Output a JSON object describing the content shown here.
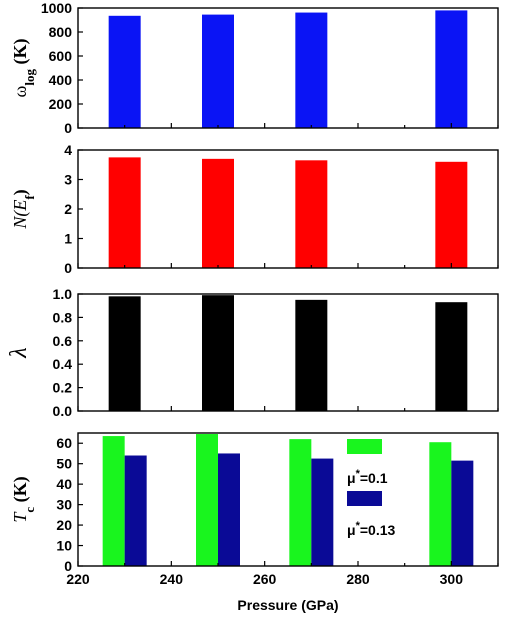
{
  "chart_data": [
    {
      "type": "bar",
      "panel": "omega_log",
      "ylabel": {
        "main": "ω",
        "sub": "log",
        "tail": " (K)"
      },
      "color": "#0a14f5",
      "x": [
        230,
        250,
        270,
        300
      ],
      "values": [
        935,
        945,
        962,
        980
      ],
      "xlim": [
        220,
        310
      ],
      "ylim": [
        0,
        1000
      ],
      "yticks": [
        0,
        200,
        400,
        600,
        800,
        1000
      ]
    },
    {
      "type": "bar",
      "panel": "N_Ef",
      "ylabel": {
        "main": "N(E",
        "sub": "f",
        "tail": ")"
      },
      "color": "#ff0000",
      "x": [
        230,
        250,
        270,
        300
      ],
      "values": [
        3.75,
        3.7,
        3.65,
        3.6
      ],
      "xlim": [
        220,
        310
      ],
      "ylim": [
        0,
        4
      ],
      "yticks": [
        0,
        1,
        2,
        3,
        4
      ]
    },
    {
      "type": "bar",
      "panel": "lambda",
      "ylabel": {
        "main": "λ",
        "sub": "",
        "tail": ""
      },
      "color": "#000000",
      "x": [
        230,
        250,
        270,
        300
      ],
      "values": [
        0.98,
        0.99,
        0.95,
        0.93
      ],
      "xlim": [
        220,
        310
      ],
      "ylim": [
        0,
        1.0
      ],
      "yticks": [
        "0.0",
        "0.2",
        "0.4",
        "0.6",
        "0.8",
        "1.0"
      ]
    },
    {
      "type": "bar",
      "panel": "Tc",
      "ylabel": {
        "main": "T",
        "sub": "c",
        "tail": " (K)"
      },
      "xlabel": "Pressure (GPa)",
      "x": [
        230,
        250,
        270,
        300
      ],
      "xlim": [
        220,
        310
      ],
      "ylim": [
        0,
        65
      ],
      "yticks": [
        0,
        10,
        20,
        30,
        40,
        50,
        60
      ],
      "xticks": [
        220,
        240,
        260,
        280,
        300
      ],
      "series": [
        {
          "name": "μ*=0.1",
          "color": "#19f51e",
          "values": [
            63.5,
            64.5,
            62,
            60.5
          ]
        },
        {
          "name": "μ*=0.13",
          "color": "#0a0a96",
          "values": [
            54,
            55,
            52.5,
            51.5
          ]
        }
      ],
      "legend": [
        {
          "mu": "μ",
          "star": "*",
          "value": "=0.1"
        },
        {
          "mu": "μ",
          "star": "*",
          "value": "=0.13"
        }
      ]
    }
  ]
}
